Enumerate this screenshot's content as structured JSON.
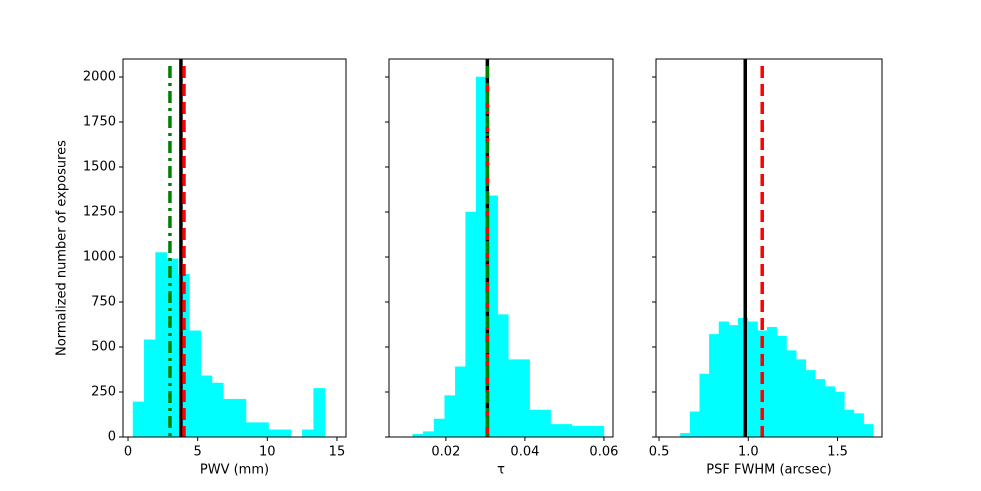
{
  "chart_data": [
    {
      "type": "histogram",
      "xlabel": "PWV (mm)",
      "ylabel": "Normalized number of exposures",
      "bins": [
        0.36,
        1.17,
        1.98,
        2.79,
        3.6,
        4.41,
        5.22,
        6.03,
        6.84,
        7.65,
        8.47,
        9.28,
        10.09,
        10.9,
        11.71,
        12.52,
        13.33,
        14.14
      ],
      "values": [
        195,
        540,
        1025,
        990,
        905,
        590,
        340,
        300,
        210,
        210,
        80,
        80,
        40,
        40,
        0,
        40,
        270
      ],
      "color": "#00ffff",
      "lines": [
        {
          "x": 3.8,
          "color": "#000000",
          "style": "solid"
        },
        {
          "x": 4.02,
          "color": "#ff0000",
          "style": "dashed"
        },
        {
          "x": 3.01,
          "color": "#008000",
          "style": "dashdot"
        }
      ],
      "xlim": [
        -0.36,
        15.65
      ],
      "xticks": [
        0,
        5,
        10,
        15
      ],
      "ylim": [
        0,
        2100
      ],
      "yticks": [
        0,
        250,
        500,
        750,
        1000,
        1250,
        1500,
        1750,
        2000
      ],
      "ytick_labels": true
    },
    {
      "type": "histogram",
      "xlabel": "τ",
      "bins": [
        0.0116,
        0.0143,
        0.017,
        0.0197,
        0.0224,
        0.025,
        0.0277,
        0.0304,
        0.0331,
        0.0358,
        0.0385,
        0.0412,
        0.0439,
        0.0465,
        0.0492,
        0.0519,
        0.0546,
        0.0573,
        0.06
      ],
      "values": [
        15,
        30,
        100,
        230,
        390,
        1250,
        2000,
        1340,
        680,
        430,
        430,
        150,
        150,
        70,
        70,
        60,
        60,
        60
      ],
      "color": "#00ffff",
      "lines": [
        {
          "x": 0.0305,
          "color": "#000000",
          "style": "solid"
        },
        {
          "x": 0.0305,
          "color": "#ff0000",
          "style": "dashed"
        },
        {
          "x": 0.0305,
          "color": "#008000",
          "style": "dashdot"
        }
      ],
      "xlim": [
        0.0056,
        0.0623
      ],
      "xticks": [
        0.02,
        0.04,
        0.06
      ],
      "ylim": [
        0,
        2100
      ],
      "yticks": [
        0,
        250,
        500,
        750,
        1000,
        1250,
        1500,
        1750,
        2000
      ],
      "ytick_labels": false
    },
    {
      "type": "histogram",
      "xlabel": "PSF FWHM (arcsec)",
      "bins": [
        0.62,
        0.674,
        0.728,
        0.782,
        0.836,
        0.89,
        0.944,
        0.998,
        1.052,
        1.106,
        1.16,
        1.214,
        1.268,
        1.322,
        1.376,
        1.43,
        1.484,
        1.538,
        1.592,
        1.646,
        1.7
      ],
      "values": [
        20,
        140,
        350,
        570,
        640,
        620,
        660,
        640,
        590,
        610,
        560,
        480,
        430,
        370,
        320,
        280,
        250,
        150,
        130,
        70
      ],
      "color": "#00ffff",
      "lines": [
        {
          "x": 0.983,
          "color": "#000000",
          "style": "solid"
        },
        {
          "x": 1.078,
          "color": "#ff0000",
          "style": "dashed"
        }
      ],
      "xlim": [
        0.483,
        1.749
      ],
      "xticks": [
        0.5,
        {
          "value": 1,
          "label": "1.0"
        },
        1.5
      ],
      "ylim": [
        0,
        2100
      ],
      "yticks": [
        0,
        250,
        500,
        750,
        1000,
        1250,
        1500,
        1750,
        2000
      ],
      "ytick_labels": false
    }
  ]
}
